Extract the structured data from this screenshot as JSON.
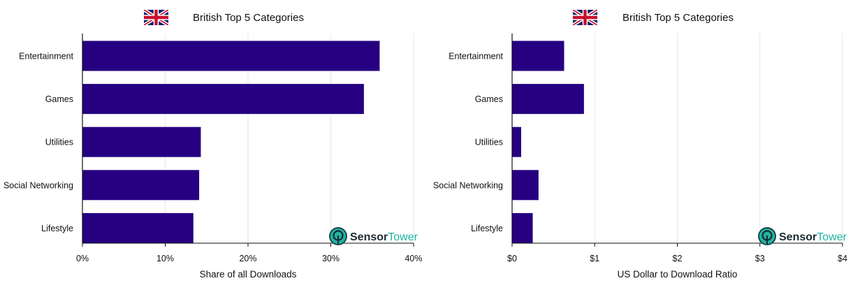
{
  "colors": {
    "bar": "#260081",
    "grid": "#e6e6e6",
    "axis": "#111111",
    "logo_accent": "#1fb3a2",
    "logo_dark": "#1d2a33",
    "flag_blue": "#012169",
    "flag_red": "#C8102E"
  },
  "logo": {
    "part1": "Sensor",
    "part2": "Tower",
    "icon": "sensortower-logo-icon"
  },
  "flag_icon": "union-jack-flag-icon",
  "chart_data": [
    {
      "type": "bar",
      "orientation": "horizontal",
      "title": "British Top 5 Categories",
      "categories": [
        "Entertainment",
        "Games",
        "Utilities",
        "Social Networking",
        "Lifestyle"
      ],
      "values": [
        0.359,
        0.34,
        0.143,
        0.141,
        0.134
      ],
      "xlabel": "Share of all Downloads",
      "xlim": [
        0,
        0.4
      ],
      "xticks": [
        0,
        0.1,
        0.2,
        0.3,
        0.4
      ],
      "xtick_labels": [
        "0%",
        "10%",
        "20%",
        "30%",
        "40%"
      ],
      "grid": true
    },
    {
      "type": "bar",
      "orientation": "horizontal",
      "title": "British Top 5 Categories",
      "categories": [
        "Entertainment",
        "Games",
        "Utilities",
        "Social Networking",
        "Lifestyle"
      ],
      "values": [
        0.63,
        0.87,
        0.11,
        0.32,
        0.25
      ],
      "xlabel": "US Dollar to Download Ratio",
      "xlim": [
        0,
        4
      ],
      "xticks": [
        0,
        1,
        2,
        3,
        4
      ],
      "xtick_labels": [
        "$0",
        "$1",
        "$2",
        "$3",
        "$4"
      ],
      "grid": true
    }
  ]
}
